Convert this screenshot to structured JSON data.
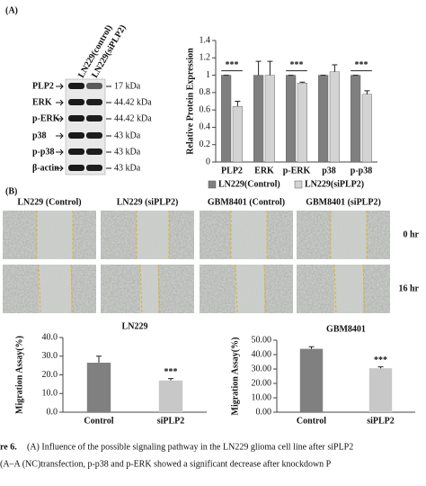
{
  "panel_a_label": "(A)",
  "panel_b_label": "(B)",
  "blot": {
    "columns": [
      "LN229(control)",
      "LN229(siPLP2)"
    ],
    "rows": [
      {
        "label": "PLP2",
        "size": "17 kDa"
      },
      {
        "label": "ERK",
        "size": "44.42 kDa"
      },
      {
        "label": "p-ERK",
        "size": "44.42 kDa"
      },
      {
        "label": "p38",
        "size": "43 kDa"
      },
      {
        "label": "p-p38",
        "size": "43 kDa"
      },
      {
        "label": "β-actin",
        "size": "43 kDa"
      }
    ]
  },
  "migration_images": {
    "columns": [
      "LN229 (Control)",
      "LN229 (siPLP2)",
      "GBM8401 (Control)",
      "GBM8401 (siPLP2)"
    ],
    "rows": [
      "0 hr",
      "16 hr"
    ]
  },
  "chart_data": [
    {
      "type": "bar",
      "y_label": "Relative Protein Expression",
      "categories": [
        "PLP2",
        "ERK",
        "p-ERK",
        "p38",
        "p-p38"
      ],
      "series": [
        {
          "name": "LN229(Control)",
          "color": "#7f7f7f",
          "values": [
            1.0,
            1.0,
            1.0,
            1.0,
            1.0
          ],
          "errors": [
            0.0,
            0.16,
            0.0,
            0.0,
            0.0
          ]
        },
        {
          "name": "LN229(siPLP2)",
          "color": "#d3d3d3",
          "values": [
            0.64,
            1.0,
            0.91,
            1.04,
            0.78
          ],
          "errors": [
            0.06,
            0.16,
            0.01,
            0.08,
            0.04
          ]
        }
      ],
      "significance": [
        "***",
        null,
        "***",
        null,
        "***"
      ],
      "ylim": [
        0,
        1.4
      ],
      "yticks": [
        0,
        0.2,
        0.4,
        0.6,
        0.8,
        1,
        1.2,
        1.4
      ],
      "legend": "bottom"
    },
    {
      "type": "bar",
      "title": "LN229",
      "y_label": "Migration Assay(%)",
      "categories": [
        "Control",
        "siPLP2"
      ],
      "values": [
        26.5,
        17
      ],
      "errors": [
        3.5,
        1
      ],
      "colors": [
        "#808080",
        "#c8c8c8"
      ],
      "significance": [
        null,
        "***"
      ],
      "ylim": [
        0,
        40
      ],
      "yticks": [
        {
          "value": 0,
          "label": "0.0"
        },
        {
          "value": 10,
          "label": "10.0"
        },
        {
          "value": 20,
          "label": "20.0"
        },
        {
          "value": 30,
          "label": "30.0"
        },
        {
          "value": 40,
          "label": "40.0"
        }
      ]
    },
    {
      "type": "bar",
      "title": "GBM8401",
      "y_label": "Migration Assay(%)",
      "categories": [
        "Control",
        "siPLP2"
      ],
      "values": [
        44,
        30.5
      ],
      "errors": [
        1.5,
        1
      ],
      "colors": [
        "#808080",
        "#c8c8c8"
      ],
      "significance": [
        null,
        "***"
      ],
      "ylim": [
        0,
        50
      ],
      "yticks": [
        {
          "value": 0,
          "label": "0.00"
        },
        {
          "value": 10,
          "label": "10.00"
        },
        {
          "value": 20,
          "label": "20.00"
        },
        {
          "value": 30,
          "label": "30.00"
        },
        {
          "value": 40,
          "label": "40.00"
        },
        {
          "value": 50,
          "label": "50.00"
        }
      ]
    }
  ],
  "caption": {
    "label": "re 6.",
    "line1": "(A) Influence of the possible signaling pathway in the LN229 glioma cell line after siPLP2",
    "line2": "(A–A (NC)transfection, p-p38 and p-ERK showed a significant decrease after knockdown P"
  }
}
